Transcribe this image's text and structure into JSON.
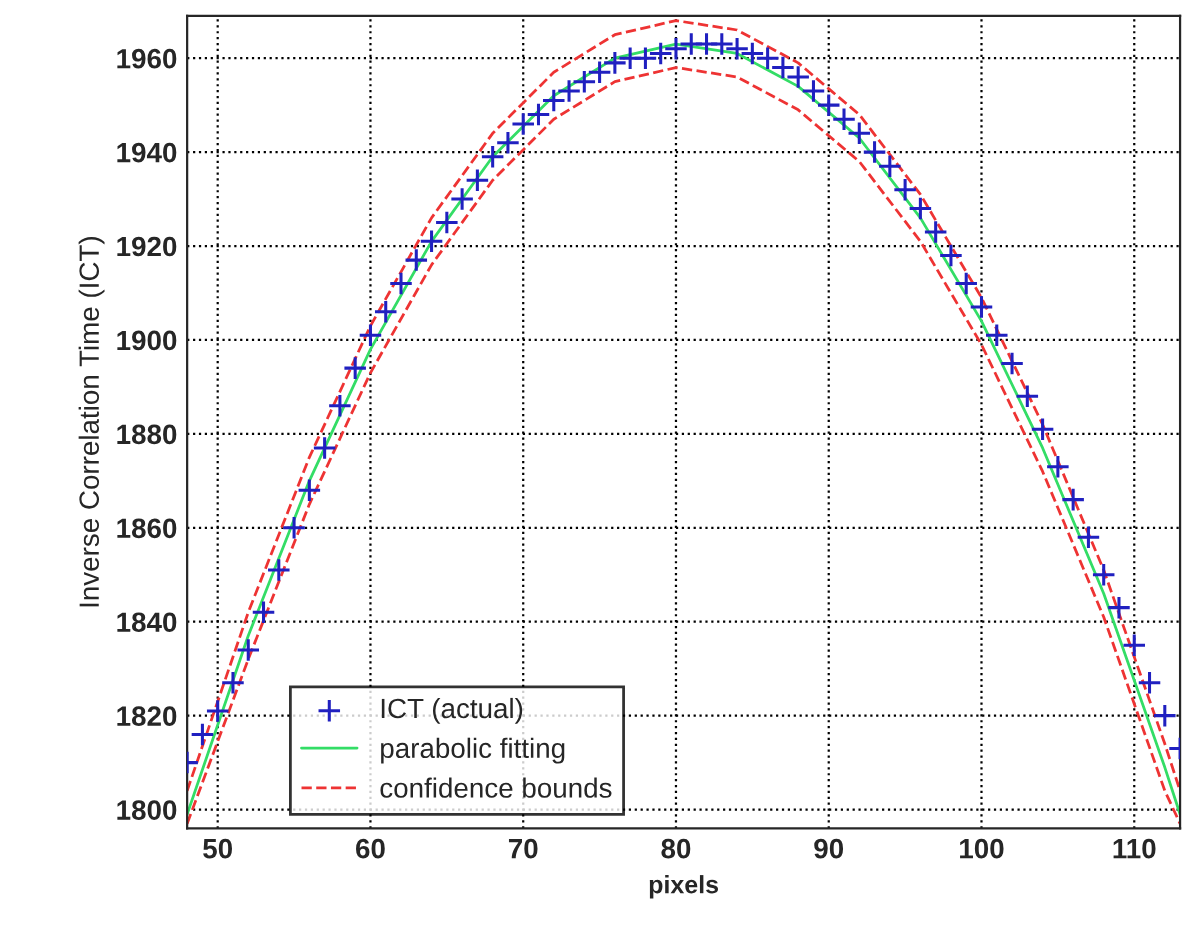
{
  "chart_data": {
    "type": "line",
    "xlabel": "pixels",
    "ylabel": "Inverse Correlation Time (ICT)",
    "xlim": [
      48,
      113
    ],
    "ylim": [
      1796,
      1969
    ],
    "xticks": [
      50,
      60,
      70,
      80,
      90,
      100,
      110
    ],
    "yticks": [
      1800,
      1820,
      1840,
      1860,
      1880,
      1900,
      1920,
      1940,
      1960
    ],
    "grid": true,
    "legend": "bottom left",
    "series": [
      {
        "name": "ICT (actual)",
        "type": "scatter",
        "marker": "cross",
        "color": "#2020c0",
        "x": [
          48,
          49,
          50,
          51,
          52,
          53,
          54,
          55,
          56,
          57,
          58,
          59,
          60,
          61,
          62,
          63,
          64,
          65,
          66,
          67,
          68,
          69,
          70,
          71,
          72,
          73,
          74,
          75,
          76,
          77,
          78,
          79,
          80,
          81,
          82,
          83,
          84,
          85,
          86,
          87,
          88,
          89,
          90,
          91,
          92,
          93,
          94,
          95,
          96,
          97,
          98,
          99,
          100,
          101,
          102,
          103,
          104,
          105,
          106,
          107,
          108,
          109,
          110,
          111,
          112,
          113
        ],
        "values": [
          1810,
          1816,
          1821,
          1827,
          1834,
          1842,
          1851,
          1860,
          1868,
          1877,
          1886,
          1894,
          1901,
          1906,
          1912,
          1917,
          1921,
          1925,
          1930,
          1934,
          1939,
          1942,
          1946,
          1948,
          1951,
          1953,
          1955,
          1957,
          1959,
          1960,
          1960,
          1961,
          1962,
          1963,
          1963,
          1963,
          1962,
          1961,
          1960,
          1958,
          1956,
          1953,
          1950,
          1947,
          1944,
          1940,
          1937,
          1932,
          1928,
          1923,
          1918,
          1912,
          1907,
          1901,
          1895,
          1888,
          1881,
          1873,
          1866,
          1858,
          1850,
          1843,
          1835,
          1827,
          1820,
          1813
        ]
      },
      {
        "name": "parabolic fitting",
        "line_style": "solid",
        "color": "#33dd66",
        "x": [
          48,
          52,
          56,
          60,
          64,
          68,
          72,
          76,
          80,
          84,
          88,
          92,
          96,
          100,
          104,
          108,
          112,
          113
        ],
        "values": [
          1799,
          1837,
          1870,
          1898,
          1921,
          1939,
          1952,
          1960,
          1963,
          1961,
          1954,
          1943,
          1926,
          1904,
          1877,
          1846,
          1809,
          1799
        ]
      },
      {
        "name": "confidence bounds",
        "line_style": "dashed",
        "color": "#ee3333",
        "x": [
          48,
          52,
          56,
          60,
          64,
          68,
          72,
          76,
          80,
          84,
          88,
          92,
          96,
          100,
          104,
          108,
          112,
          113
        ],
        "values": [
          1804,
          1842,
          1875,
          1903,
          1926,
          1944,
          1957,
          1965,
          1968,
          1966,
          1959,
          1948,
          1931,
          1909,
          1882,
          1851,
          1814,
          1804
        ]
      },
      {
        "line_style": "dashed",
        "color": "#ee3333",
        "x": [
          48,
          52,
          56,
          60,
          64,
          68,
          72,
          76,
          80,
          84,
          88,
          92,
          96,
          100,
          104,
          108,
          112,
          113
        ],
        "values": [
          1797,
          1832,
          1865,
          1893,
          1916,
          1934,
          1947,
          1955,
          1958,
          1956,
          1949,
          1938,
          1921,
          1899,
          1872,
          1841,
          1804,
          1797
        ]
      }
    ]
  }
}
